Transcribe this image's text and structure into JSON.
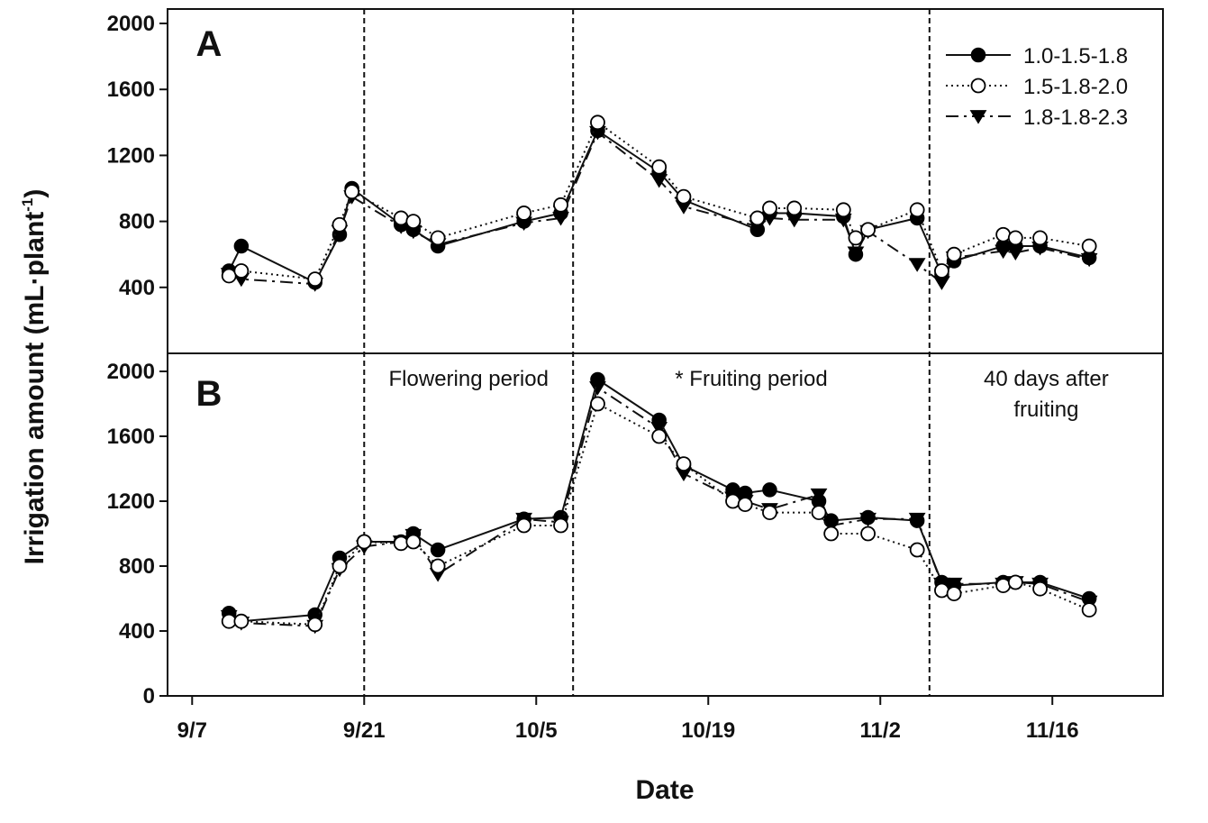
{
  "chart_data": {
    "type": "line",
    "xlabel": "Date",
    "ylabel_main": "Irrigation amount (mL·plant",
    "ylabel_sup": "-1",
    "ylabel_close": ")",
    "x_ticks": [
      "9/7",
      "9/21",
      "10/5",
      "10/19",
      "11/2",
      "11/16"
    ],
    "x_tick_days": [
      0,
      14,
      28,
      42,
      56,
      70
    ],
    "xlim": [
      "9/5",
      "11/25"
    ],
    "y_ticks": [
      0,
      400,
      800,
      1200,
      1600,
      2000
    ],
    "legend": [
      "1.0-1.5-1.8",
      "1.5-1.8-2.0",
      "1.8-1.8-2.3"
    ],
    "period_boundaries": [
      "9/21",
      "10/8",
      "11/6"
    ],
    "period_labels": [
      {
        "lines": [
          "Flowering period"
        ],
        "panel": "B"
      },
      {
        "lines": [
          "* Fruiting period"
        ],
        "panel": "B"
      },
      {
        "lines": [
          "40 days after",
          "fruiting"
        ],
        "panel": "B"
      }
    ],
    "panels": [
      {
        "label": "A",
        "ylim": [
          0,
          2100
        ],
        "y_tick_labels_shown": [
          400,
          800,
          1200,
          1600,
          2000
        ],
        "series": [
          {
            "name": "1.0-1.5-1.8",
            "marker": "filled-circle",
            "line": "solid",
            "x": [
              "9/10",
              "9/11",
              "9/17",
              "9/19",
              "9/20",
              "9/24",
              "9/25",
              "9/27",
              "10/4",
              "10/7",
              "10/10",
              "10/15",
              "10/17",
              "10/23",
              "10/24",
              "10/26",
              "10/30",
              "10/31",
              "11/1",
              "11/5",
              "11/7",
              "11/8",
              "11/12",
              "11/13",
              "11/15",
              "11/19"
            ],
            "y": [
              500,
              650,
              430,
              720,
              1000,
              780,
              750,
              650,
              800,
              850,
              1350,
              1100,
              930,
              750,
              850,
              850,
              830,
              600,
              750,
              820,
              480,
              560,
              650,
              650,
              650,
              580
            ]
          },
          {
            "name": "1.5-1.8-2.0",
            "marker": "open-circle",
            "line": "dotted",
            "x": [
              "9/10",
              "9/11",
              "9/17",
              "9/19",
              "9/20",
              "9/24",
              "9/25",
              "9/27",
              "10/4",
              "10/7",
              "10/10",
              "10/15",
              "10/17",
              "10/23",
              "10/24",
              "10/26",
              "10/30",
              "10/31",
              "11/1",
              "11/5",
              "11/7",
              "11/8",
              "11/12",
              "11/13",
              "11/15",
              "11/19"
            ],
            "y": [
              470,
              500,
              450,
              780,
              980,
              820,
              800,
              700,
              850,
              900,
              1400,
              1130,
              950,
              820,
              880,
              880,
              870,
              700,
              750,
              870,
              500,
              600,
              720,
              700,
              700,
              650
            ]
          },
          {
            "name": "1.8-1.8-2.3",
            "marker": "filled-triangle-down",
            "line": "dashed",
            "x": [
              "9/10",
              "9/11",
              "9/17",
              "9/19",
              "9/20",
              "9/24",
              "9/25",
              "9/27",
              "10/4",
              "10/7",
              "10/10",
              "10/15",
              "10/17",
              "10/23",
              "10/24",
              "10/26",
              "10/30",
              "10/31",
              "11/1",
              "11/5",
              "11/7",
              "11/8",
              "11/12",
              "11/13",
              "11/15",
              "11/19"
            ],
            "y": [
              480,
              450,
              420,
              740,
              950,
              770,
              740,
              660,
              790,
              820,
              1340,
              1050,
              890,
              770,
              820,
              810,
              810,
              610,
              740,
              540,
              430,
              580,
              620,
              610,
              640,
              570
            ]
          }
        ]
      },
      {
        "label": "B",
        "ylim": [
          0,
          2100
        ],
        "y_tick_labels_shown": [
          0,
          400,
          800,
          1200,
          1600,
          2000
        ],
        "series": [
          {
            "name": "1.0-1.5-1.8",
            "marker": "filled-circle",
            "line": "solid",
            "x": [
              "9/10",
              "9/11",
              "9/17",
              "9/19",
              "9/21",
              "9/24",
              "9/25",
              "9/27",
              "10/4",
              "10/7",
              "10/10",
              "10/15",
              "10/17",
              "10/21",
              "10/22",
              "10/24",
              "10/28",
              "10/29",
              "11/1",
              "11/5",
              "11/7",
              "11/8",
              "11/12",
              "11/13",
              "11/15",
              "11/19"
            ],
            "y": [
              510,
              460,
              500,
              850,
              950,
              950,
              1000,
              900,
              1090,
              1100,
              1950,
              1700,
              1420,
              1270,
              1250,
              1270,
              1200,
              1080,
              1100,
              1080,
              700,
              680,
              700,
              700,
              700,
              600
            ]
          },
          {
            "name": "1.5-1.8-2.0",
            "marker": "open-circle",
            "line": "dotted",
            "x": [
              "9/10",
              "9/11",
              "9/17",
              "9/19",
              "9/21",
              "9/24",
              "9/25",
              "9/27",
              "10/4",
              "10/7",
              "10/10",
              "10/15",
              "10/17",
              "10/21",
              "10/22",
              "10/24",
              "10/28",
              "10/29",
              "11/1",
              "11/5",
              "11/7",
              "11/8",
              "11/12",
              "11/13",
              "11/15",
              "11/19"
            ],
            "y": [
              460,
              460,
              440,
              800,
              950,
              940,
              950,
              800,
              1050,
              1050,
              1800,
              1600,
              1430,
              1200,
              1180,
              1130,
              1130,
              1000,
              1000,
              900,
              650,
              630,
              680,
              700,
              660,
              530
            ]
          },
          {
            "name": "1.8-1.8-2.3",
            "marker": "filled-triangle-down",
            "line": "dashed",
            "x": [
              "9/10",
              "9/11",
              "9/17",
              "9/19",
              "9/21",
              "9/24",
              "9/25",
              "9/27",
              "10/4",
              "10/7",
              "10/10",
              "10/15",
              "10/17",
              "10/21",
              "10/22",
              "10/24",
              "10/28",
              "10/29",
              "11/1",
              "11/5",
              "11/7",
              "11/8",
              "11/12",
              "11/13",
              "11/15",
              "11/19"
            ],
            "y": [
              490,
              450,
              430,
              780,
              920,
              950,
              990,
              750,
              1090,
              1070,
              1900,
              1650,
              1370,
              1220,
              1200,
              1150,
              1240,
              1050,
              1090,
              1090,
              690,
              690,
              690,
              700,
              690,
              580
            ]
          }
        ]
      }
    ]
  }
}
